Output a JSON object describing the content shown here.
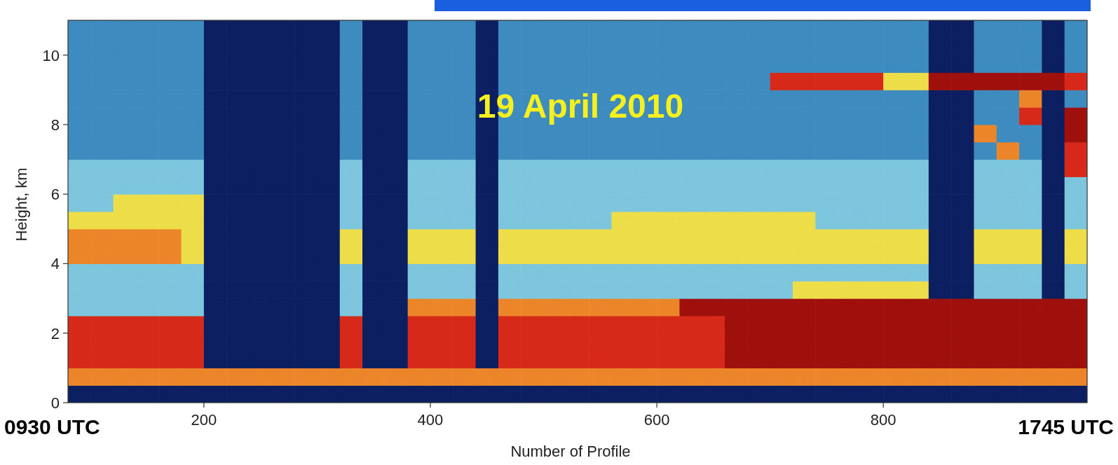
{
  "chart_data": {
    "type": "heatmap",
    "xlabel": "Number of Profile",
    "ylabel": "Height, km",
    "annotations": [
      "19 April 2010",
      "0930 UTC",
      "1745 UTC"
    ],
    "xlim": [
      80,
      980
    ],
    "xticks": [
      200,
      400,
      600,
      800
    ],
    "ylim": [
      0,
      11
    ],
    "yticks": [
      0,
      2,
      4,
      6,
      8,
      10
    ],
    "x": [
      80,
      100,
      120,
      140,
      160,
      180,
      200,
      220,
      240,
      260,
      280,
      300,
      320,
      340,
      360,
      380,
      400,
      420,
      440,
      460,
      480,
      500,
      520,
      540,
      560,
      580,
      600,
      620,
      640,
      660,
      680,
      700,
      720,
      740,
      760,
      780,
      800,
      820,
      840,
      860,
      880,
      900,
      920,
      940,
      960,
      980
    ],
    "y": [
      0,
      0.5,
      1,
      1.5,
      2,
      2.5,
      3,
      3.5,
      4,
      4.5,
      5,
      5.5,
      6,
      6.5,
      7,
      7.5,
      8,
      8.5,
      9,
      9.5,
      10,
      10.5,
      11
    ],
    "zlim": [
      0,
      6
    ],
    "colors": [
      "#0b1f63",
      "#3f8fc4",
      "#7fcbe3",
      "#f3e34a",
      "#f2892a",
      "#dc2a1a",
      "#a3100c"
    ],
    "cells": [
      [
        0,
        0,
        0,
        0,
        0,
        0,
        0,
        0,
        0,
        0,
        0,
        0,
        0,
        0,
        0,
        0,
        0,
        0,
        0,
        0,
        0,
        0,
        0,
        0,
        0,
        0,
        0,
        0,
        0,
        0,
        0,
        0,
        0,
        0,
        0,
        0,
        0,
        0,
        0,
        0,
        0,
        0,
        0,
        0,
        0
      ],
      [
        4,
        4,
        4,
        4,
        4,
        4,
        4,
        4,
        4,
        4,
        4,
        4,
        4,
        4,
        4,
        4,
        4,
        4,
        4,
        4,
        4,
        4,
        4,
        4,
        4,
        4,
        4,
        4,
        4,
        4,
        4,
        4,
        4,
        4,
        4,
        4,
        4,
        4,
        4,
        4,
        4,
        4,
        4,
        4,
        4
      ],
      [
        5,
        5,
        5,
        5,
        5,
        5,
        0,
        0,
        0,
        0,
        0,
        0,
        5,
        0,
        0,
        5,
        5,
        5,
        0,
        5,
        5,
        5,
        5,
        5,
        5,
        5,
        5,
        5,
        5,
        6,
        6,
        6,
        6,
        6,
        6,
        6,
        6,
        6,
        6,
        6,
        6,
        6,
        6,
        6,
        6
      ],
      [
        5,
        5,
        5,
        5,
        5,
        5,
        0,
        0,
        0,
        0,
        0,
        0,
        5,
        0,
        0,
        5,
        5,
        5,
        0,
        5,
        5,
        5,
        5,
        5,
        5,
        5,
        5,
        5,
        5,
        6,
        6,
        6,
        6,
        6,
        6,
        6,
        6,
        6,
        6,
        6,
        6,
        6,
        6,
        6,
        6
      ],
      [
        5,
        5,
        5,
        5,
        5,
        5,
        0,
        0,
        0,
        0,
        0,
        0,
        5,
        0,
        0,
        5,
        5,
        5,
        0,
        5,
        5,
        5,
        5,
        5,
        5,
        5,
        5,
        5,
        5,
        6,
        6,
        6,
        6,
        6,
        6,
        6,
        6,
        6,
        6,
        6,
        6,
        6,
        6,
        6,
        6
      ],
      [
        2,
        2,
        2,
        2,
        2,
        2,
        0,
        0,
        0,
        0,
        0,
        0,
        2,
        0,
        0,
        4,
        4,
        4,
        0,
        4,
        4,
        4,
        4,
        4,
        4,
        4,
        4,
        6,
        6,
        6,
        6,
        6,
        6,
        6,
        6,
        6,
        6,
        6,
        6,
        6,
        6,
        6,
        6,
        6,
        6
      ],
      [
        2,
        2,
        2,
        2,
        2,
        2,
        0,
        0,
        0,
        0,
        0,
        0,
        2,
        0,
        0,
        2,
        2,
        2,
        0,
        2,
        2,
        2,
        2,
        2,
        2,
        2,
        2,
        2,
        2,
        2,
        2,
        2,
        3,
        3,
        3,
        3,
        3,
        3,
        0,
        0,
        2,
        2,
        2,
        0,
        2
      ],
      [
        2,
        2,
        2,
        2,
        2,
        2,
        0,
        0,
        0,
        0,
        0,
        0,
        2,
        0,
        0,
        2,
        2,
        2,
        0,
        2,
        2,
        2,
        2,
        2,
        2,
        2,
        2,
        2,
        2,
        2,
        2,
        2,
        2,
        2,
        2,
        2,
        2,
        2,
        0,
        0,
        2,
        2,
        2,
        0,
        2
      ],
      [
        4,
        4,
        4,
        4,
        4,
        3,
        0,
        0,
        0,
        0,
        0,
        0,
        3,
        0,
        0,
        3,
        3,
        3,
        0,
        3,
        3,
        3,
        3,
        3,
        3,
        3,
        3,
        3,
        3,
        3,
        3,
        3,
        3,
        3,
        3,
        3,
        3,
        3,
        0,
        0,
        3,
        3,
        3,
        0,
        3
      ],
      [
        4,
        4,
        4,
        4,
        4,
        3,
        0,
        0,
        0,
        0,
        0,
        0,
        3,
        0,
        0,
        3,
        3,
        3,
        0,
        3,
        3,
        3,
        3,
        3,
        3,
        3,
        3,
        3,
        3,
        3,
        3,
        3,
        3,
        3,
        3,
        3,
        3,
        3,
        0,
        0,
        3,
        3,
        3,
        0,
        3
      ],
      [
        3,
        3,
        3,
        3,
        3,
        3,
        0,
        0,
        0,
        0,
        0,
        0,
        2,
        0,
        0,
        2,
        2,
        2,
        0,
        2,
        2,
        2,
        2,
        2,
        3,
        3,
        3,
        3,
        3,
        3,
        3,
        3,
        3,
        2,
        2,
        2,
        2,
        2,
        0,
        0,
        2,
        2,
        2,
        0,
        2
      ],
      [
        2,
        2,
        3,
        3,
        3,
        3,
        0,
        0,
        0,
        0,
        0,
        0,
        2,
        0,
        0,
        2,
        2,
        2,
        0,
        2,
        2,
        2,
        2,
        2,
        2,
        2,
        2,
        2,
        2,
        2,
        2,
        2,
        2,
        2,
        2,
        2,
        2,
        2,
        0,
        0,
        2,
        2,
        2,
        0,
        2
      ],
      [
        2,
        2,
        2,
        2,
        2,
        2,
        0,
        0,
        0,
        0,
        0,
        0,
        2,
        0,
        0,
        2,
        2,
        2,
        0,
        2,
        2,
        2,
        2,
        2,
        2,
        2,
        2,
        2,
        2,
        2,
        2,
        2,
        2,
        2,
        2,
        2,
        2,
        2,
        0,
        0,
        2,
        2,
        2,
        0,
        2
      ],
      [
        2,
        2,
        2,
        2,
        2,
        2,
        0,
        0,
        0,
        0,
        0,
        0,
        2,
        0,
        0,
        2,
        2,
        2,
        0,
        2,
        2,
        2,
        2,
        2,
        2,
        2,
        2,
        2,
        2,
        2,
        2,
        2,
        2,
        2,
        2,
        2,
        2,
        2,
        0,
        0,
        2,
        2,
        2,
        0,
        5
      ],
      [
        1,
        1,
        1,
        1,
        1,
        1,
        0,
        0,
        0,
        0,
        0,
        0,
        1,
        0,
        0,
        1,
        1,
        1,
        0,
        1,
        1,
        1,
        1,
        1,
        1,
        1,
        1,
        1,
        1,
        1,
        1,
        1,
        1,
        1,
        1,
        1,
        1,
        1,
        0,
        0,
        1,
        4,
        1,
        0,
        5
      ],
      [
        1,
        1,
        1,
        1,
        1,
        1,
        0,
        0,
        0,
        0,
        0,
        0,
        1,
        0,
        0,
        1,
        1,
        1,
        0,
        1,
        1,
        1,
        1,
        1,
        1,
        1,
        1,
        1,
        1,
        1,
        1,
        1,
        1,
        1,
        1,
        1,
        1,
        1,
        0,
        0,
        4,
        1,
        1,
        0,
        6
      ],
      [
        1,
        1,
        1,
        1,
        1,
        1,
        0,
        0,
        0,
        0,
        0,
        0,
        1,
        0,
        0,
        1,
        1,
        1,
        0,
        1,
        1,
        1,
        1,
        1,
        1,
        1,
        1,
        1,
        1,
        1,
        1,
        1,
        1,
        1,
        1,
        1,
        1,
        1,
        0,
        0,
        1,
        1,
        5,
        0,
        6
      ],
      [
        1,
        1,
        1,
        1,
        1,
        1,
        0,
        0,
        0,
        0,
        0,
        0,
        1,
        0,
        0,
        1,
        1,
        1,
        0,
        1,
        1,
        1,
        1,
        1,
        1,
        1,
        1,
        1,
        1,
        1,
        1,
        1,
        1,
        1,
        1,
        1,
        1,
        1,
        0,
        0,
        1,
        1,
        4,
        0,
        1
      ],
      [
        1,
        1,
        1,
        1,
        1,
        1,
        0,
        0,
        0,
        0,
        0,
        0,
        1,
        0,
        0,
        1,
        1,
        1,
        0,
        1,
        1,
        1,
        1,
        1,
        1,
        1,
        1,
        1,
        1,
        1,
        1,
        5,
        5,
        5,
        5,
        5,
        3,
        3,
        6,
        6,
        6,
        6,
        6,
        6,
        5
      ],
      [
        1,
        1,
        1,
        1,
        1,
        1,
        0,
        0,
        0,
        0,
        0,
        0,
        1,
        0,
        0,
        1,
        1,
        1,
        0,
        1,
        1,
        1,
        1,
        1,
        1,
        1,
        1,
        1,
        1,
        1,
        1,
        1,
        1,
        1,
        1,
        1,
        1,
        1,
        0,
        0,
        1,
        1,
        1,
        0,
        1
      ],
      [
        1,
        1,
        1,
        1,
        1,
        1,
        0,
        0,
        0,
        0,
        0,
        0,
        1,
        0,
        0,
        1,
        1,
        1,
        0,
        1,
        1,
        1,
        1,
        1,
        1,
        1,
        1,
        1,
        1,
        1,
        1,
        1,
        1,
        1,
        1,
        1,
        1,
        1,
        0,
        0,
        1,
        1,
        1,
        0,
        1
      ],
      [
        1,
        1,
        1,
        1,
        1,
        1,
        0,
        0,
        0,
        0,
        0,
        0,
        1,
        0,
        0,
        1,
        1,
        1,
        0,
        1,
        1,
        1,
        1,
        1,
        1,
        1,
        1,
        1,
        1,
        1,
        1,
        1,
        1,
        1,
        1,
        1,
        1,
        1,
        0,
        0,
        1,
        1,
        1,
        0,
        1
      ]
    ]
  }
}
